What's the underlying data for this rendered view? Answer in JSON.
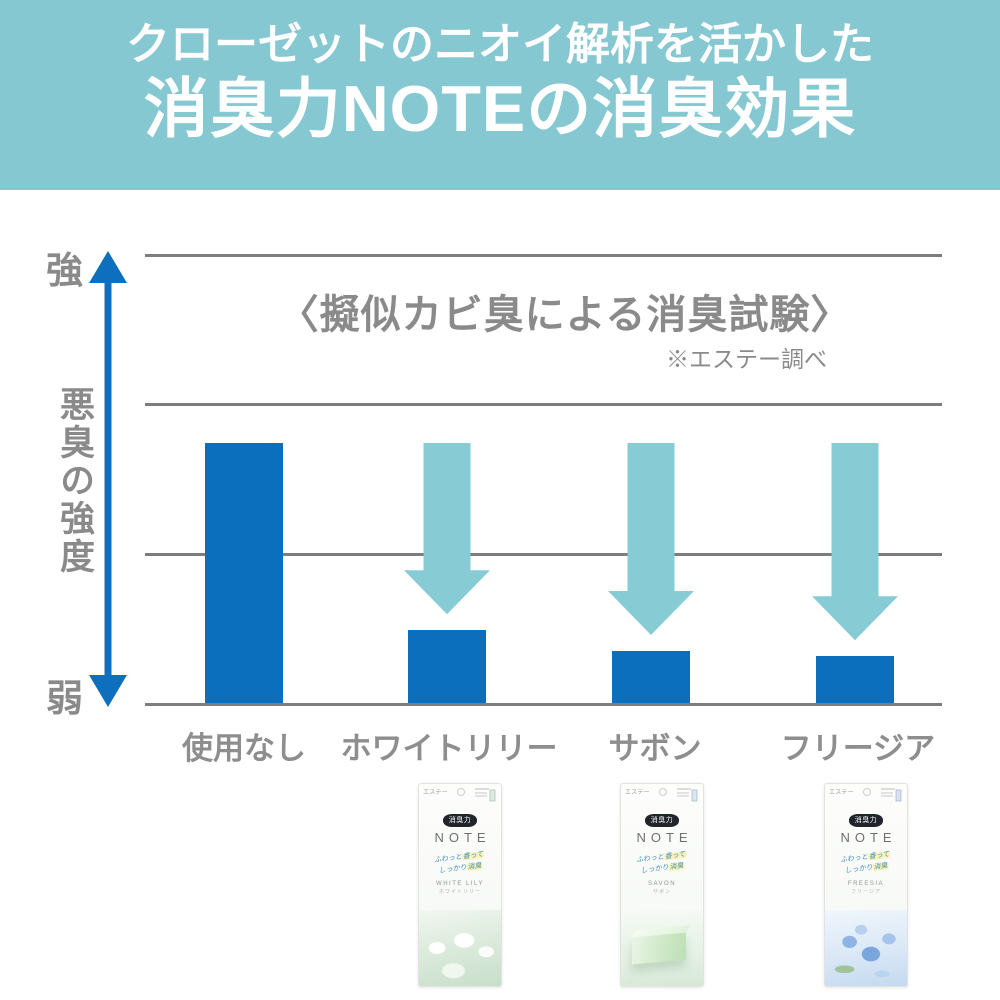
{
  "header": {
    "line1": "クローゼットのニオイ解析を活かした",
    "line2": "消臭力NOTEの消臭効果",
    "bg_color": "#85C8D1",
    "text_color": "#FFFFFF"
  },
  "chart": {
    "title": "〈擬似カビ臭による消臭試験〉",
    "source_note": "※エステー調べ",
    "y_axis": {
      "top": "強",
      "label": "悪臭の強度",
      "bottom": "弱"
    }
  },
  "chart_data": {
    "type": "bar",
    "title": "〈擬似カビ臭による消臭試験〉",
    "categories": [
      "使用なし",
      "ホワイトリリー",
      "サボン",
      "フリージア"
    ],
    "values": [
      100,
      28,
      20,
      18
    ],
    "value_unit": "relative malodor intensity, % of untreated (axis unlabeled, read from bar heights)",
    "ylabel": "悪臭の強度",
    "y_axis_ticks": [
      "弱",
      "強"
    ],
    "ylim": [
      0,
      100
    ],
    "grid": true,
    "legend": "none",
    "annotations": "light-teal downward arrows above the three treated bars indicating odor reduction",
    "colors": {
      "bar": "#0B6FBE",
      "down_arrow": "#87CCD4",
      "gridline": "#7D7D7D",
      "axis_arrow": "#0F6FBF",
      "text": "#8A8A8A"
    }
  },
  "products": {
    "maker": "エステー",
    "brand": "消臭力",
    "name": "NOTE",
    "tagline": {
      "t1a": "ふわっと",
      "t1b": "香って",
      "t2a": "しっかり",
      "t2b": "消臭"
    },
    "items": [
      {
        "scent_en": "WHITE LILY",
        "scent_ja": "ホワイトリリー"
      },
      {
        "scent_en": "SAVON",
        "scent_ja": "サボン"
      },
      {
        "scent_en": "FREESIA",
        "scent_ja": "フリージア"
      }
    ]
  }
}
